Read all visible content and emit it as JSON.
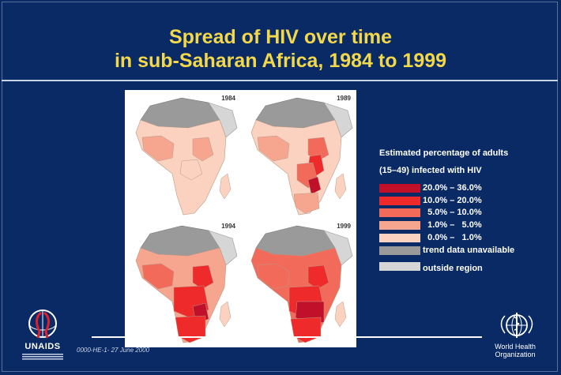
{
  "slide": {
    "title_line1": "Spread of HIV over time",
    "title_line2": "in sub-Saharan Africa, 1984 to 1999",
    "footer_code": "0000-HE-1- 27 June 2000"
  },
  "maps": [
    {
      "year": "1984"
    },
    {
      "year": "1989"
    },
    {
      "year": "1994"
    },
    {
      "year": "1999"
    }
  ],
  "legend": {
    "title_line1": "Estimated percentage of adults",
    "title_line2": "(15–49) infected with HIV",
    "items": [
      {
        "label": "20.0% – 36.0%",
        "color": "#c0102a"
      },
      {
        "label": "10.0% – 20.0%",
        "color": "#ee2a2a"
      },
      {
        "label": "  5.0% – 10.0%",
        "color": "#f26a5a"
      },
      {
        "label": "  1.0% –   5.0%",
        "color": "#f6a58e"
      },
      {
        "label": "  0.0% –   1.0%",
        "color": "#fbd2c0"
      },
      {
        "label": "trend data unavailable",
        "color": "#9a9a9a"
      },
      {
        "label": "outside region",
        "color": "#d6d6d6"
      }
    ]
  },
  "logos": {
    "unaids_text": "UNAIDS",
    "who_line1": "World Health",
    "who_line2": "Organization"
  },
  "colors": {
    "background": "#0a2a66",
    "title": "#f2d84a"
  }
}
